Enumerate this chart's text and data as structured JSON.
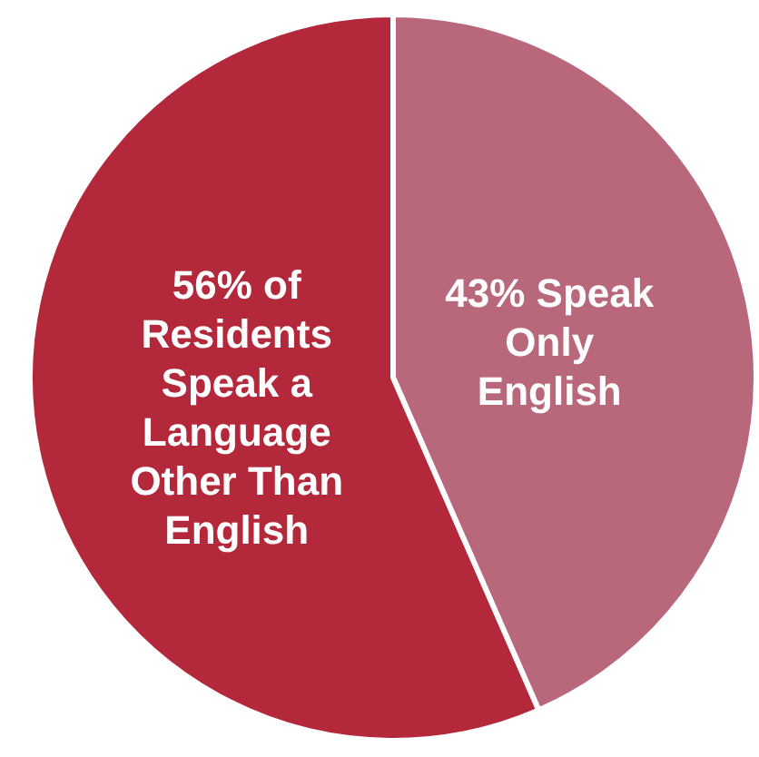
{
  "chart_data": {
    "type": "pie",
    "categories": [
      "Speak Only English",
      "of Residents Speak a Language Other Than English"
    ],
    "values": [
      43,
      56
    ],
    "value_labels": [
      "43%",
      "56%"
    ],
    "colors": [
      "#b9687b",
      "#b3283a"
    ],
    "legend": false
  }
}
